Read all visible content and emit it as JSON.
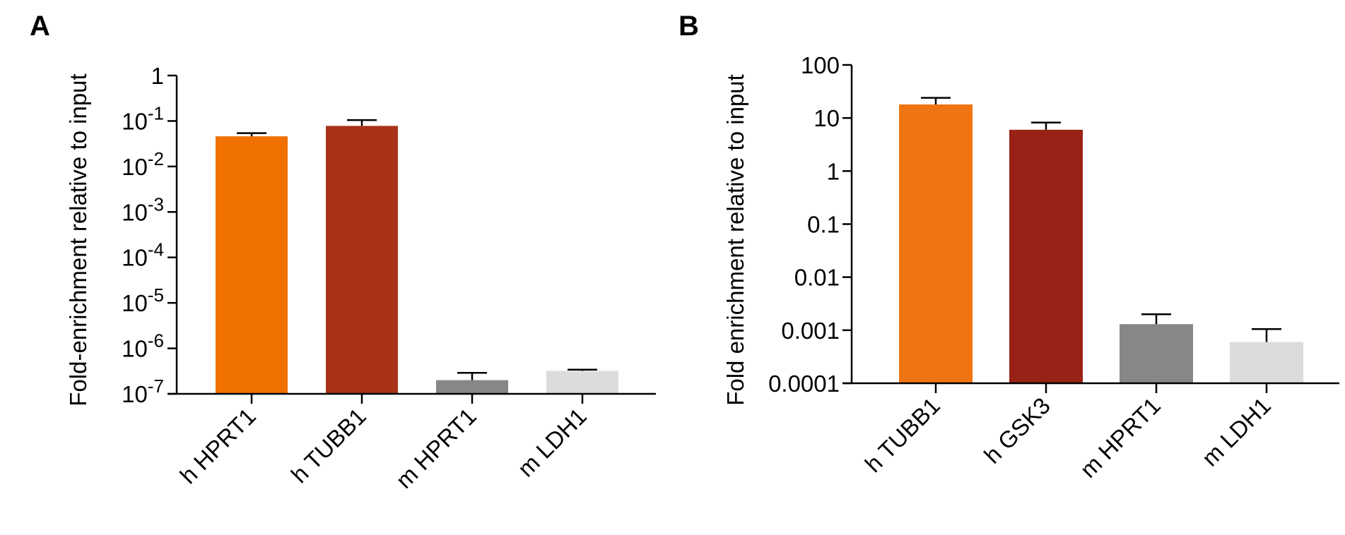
{
  "chart_data": [
    {
      "panel": "A",
      "type": "bar",
      "ylabel": "Fold-enrichment relative to input",
      "yscale": "log",
      "ylim": [
        1e-07,
        1
      ],
      "yticks": [
        {
          "value": 1,
          "base": "1",
          "exp": ""
        },
        {
          "value": 0.1,
          "base": "10",
          "exp": "-1"
        },
        {
          "value": 0.01,
          "base": "10",
          "exp": "-2"
        },
        {
          "value": 0.001,
          "base": "10",
          "exp": "-3"
        },
        {
          "value": 0.0001,
          "base": "10",
          "exp": "-4"
        },
        {
          "value": 1e-05,
          "base": "10",
          "exp": "-5"
        },
        {
          "value": 1e-06,
          "base": "10",
          "exp": "-6"
        },
        {
          "value": 1e-07,
          "base": "10",
          "exp": "-7"
        }
      ],
      "categories": [
        "h HPRT1",
        "h TUBB1",
        "m HPRT1",
        "m LDH1"
      ],
      "values": [
        0.046,
        0.078,
        2e-07,
        3.2e-07
      ],
      "error_upper": [
        0.054,
        0.105,
        2.9e-07,
        3.4e-07
      ],
      "colors": [
        "#f07000",
        "#a83218",
        "#878787",
        "#dcdcdc"
      ]
    },
    {
      "panel": "B",
      "type": "bar",
      "ylabel": "Fold enrichment relative to input",
      "yscale": "log",
      "ylim": [
        0.0001,
        100
      ],
      "yticks": [
        {
          "value": 100,
          "base": "100",
          "exp": ""
        },
        {
          "value": 10,
          "base": "10",
          "exp": ""
        },
        {
          "value": 1,
          "base": "1",
          "exp": ""
        },
        {
          "value": 0.1,
          "base": "0.1",
          "exp": ""
        },
        {
          "value": 0.01,
          "base": "0.01",
          "exp": ""
        },
        {
          "value": 0.001,
          "base": "0.001",
          "exp": ""
        },
        {
          "value": 0.0001,
          "base": "0.0001",
          "exp": ""
        }
      ],
      "categories": [
        "h TUBB1",
        "h GSK3",
        "m HPRT1",
        "m LDH1"
      ],
      "values": [
        18,
        6.0,
        0.0013,
        0.0006
      ],
      "error_upper": [
        24,
        8.2,
        0.002,
        0.00105
      ],
      "colors": [
        "#f07512",
        "#982216",
        "#878787",
        "#dcdcdc"
      ]
    }
  ]
}
